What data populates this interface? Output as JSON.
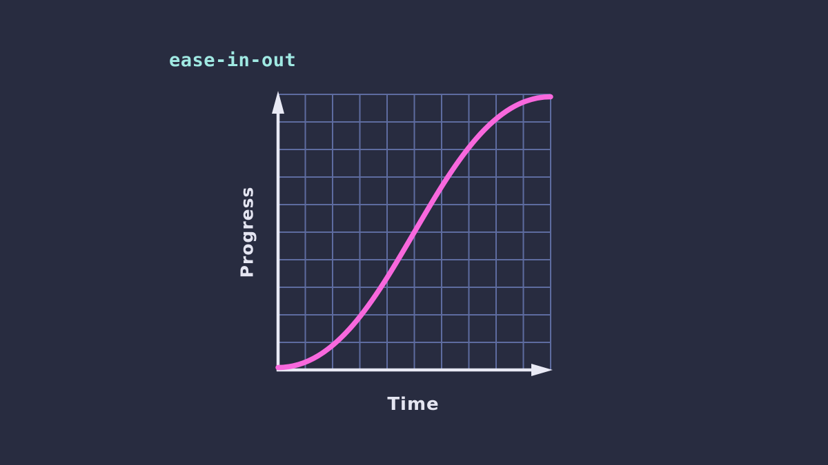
{
  "chart_data": {
    "type": "line",
    "title": "ease-in-out",
    "xlabel": "Time",
    "ylabel": "Progress",
    "x_range": [
      0,
      1
    ],
    "y_range": [
      0,
      1
    ],
    "grid": {
      "columns": 10,
      "rows": 10,
      "visible": true
    },
    "legend": "none",
    "ticks": "none",
    "axes": {
      "x_arrow": true,
      "y_arrow": true
    },
    "easing": {
      "name": "ease-in-out",
      "cubic_bezier": [
        0.42,
        0,
        0.58,
        1
      ]
    },
    "series": [
      {
        "name": "ease-in-out progress curve",
        "x": [
          0,
          0.1,
          0.2,
          0.3,
          0.4,
          0.5,
          0.6,
          0.7,
          0.8,
          0.9,
          1
        ],
        "y": [
          0,
          0.02,
          0.08,
          0.19,
          0.33,
          0.5,
          0.67,
          0.81,
          0.92,
          0.98,
          1
        ]
      }
    ]
  },
  "colors": {
    "background": "#282c40",
    "grid_line": "#5e6ca0",
    "axis": "#e9eaf5",
    "curve": "#f868dd",
    "title": "#a0e9e3",
    "axis_label": "#e4e5f1"
  }
}
